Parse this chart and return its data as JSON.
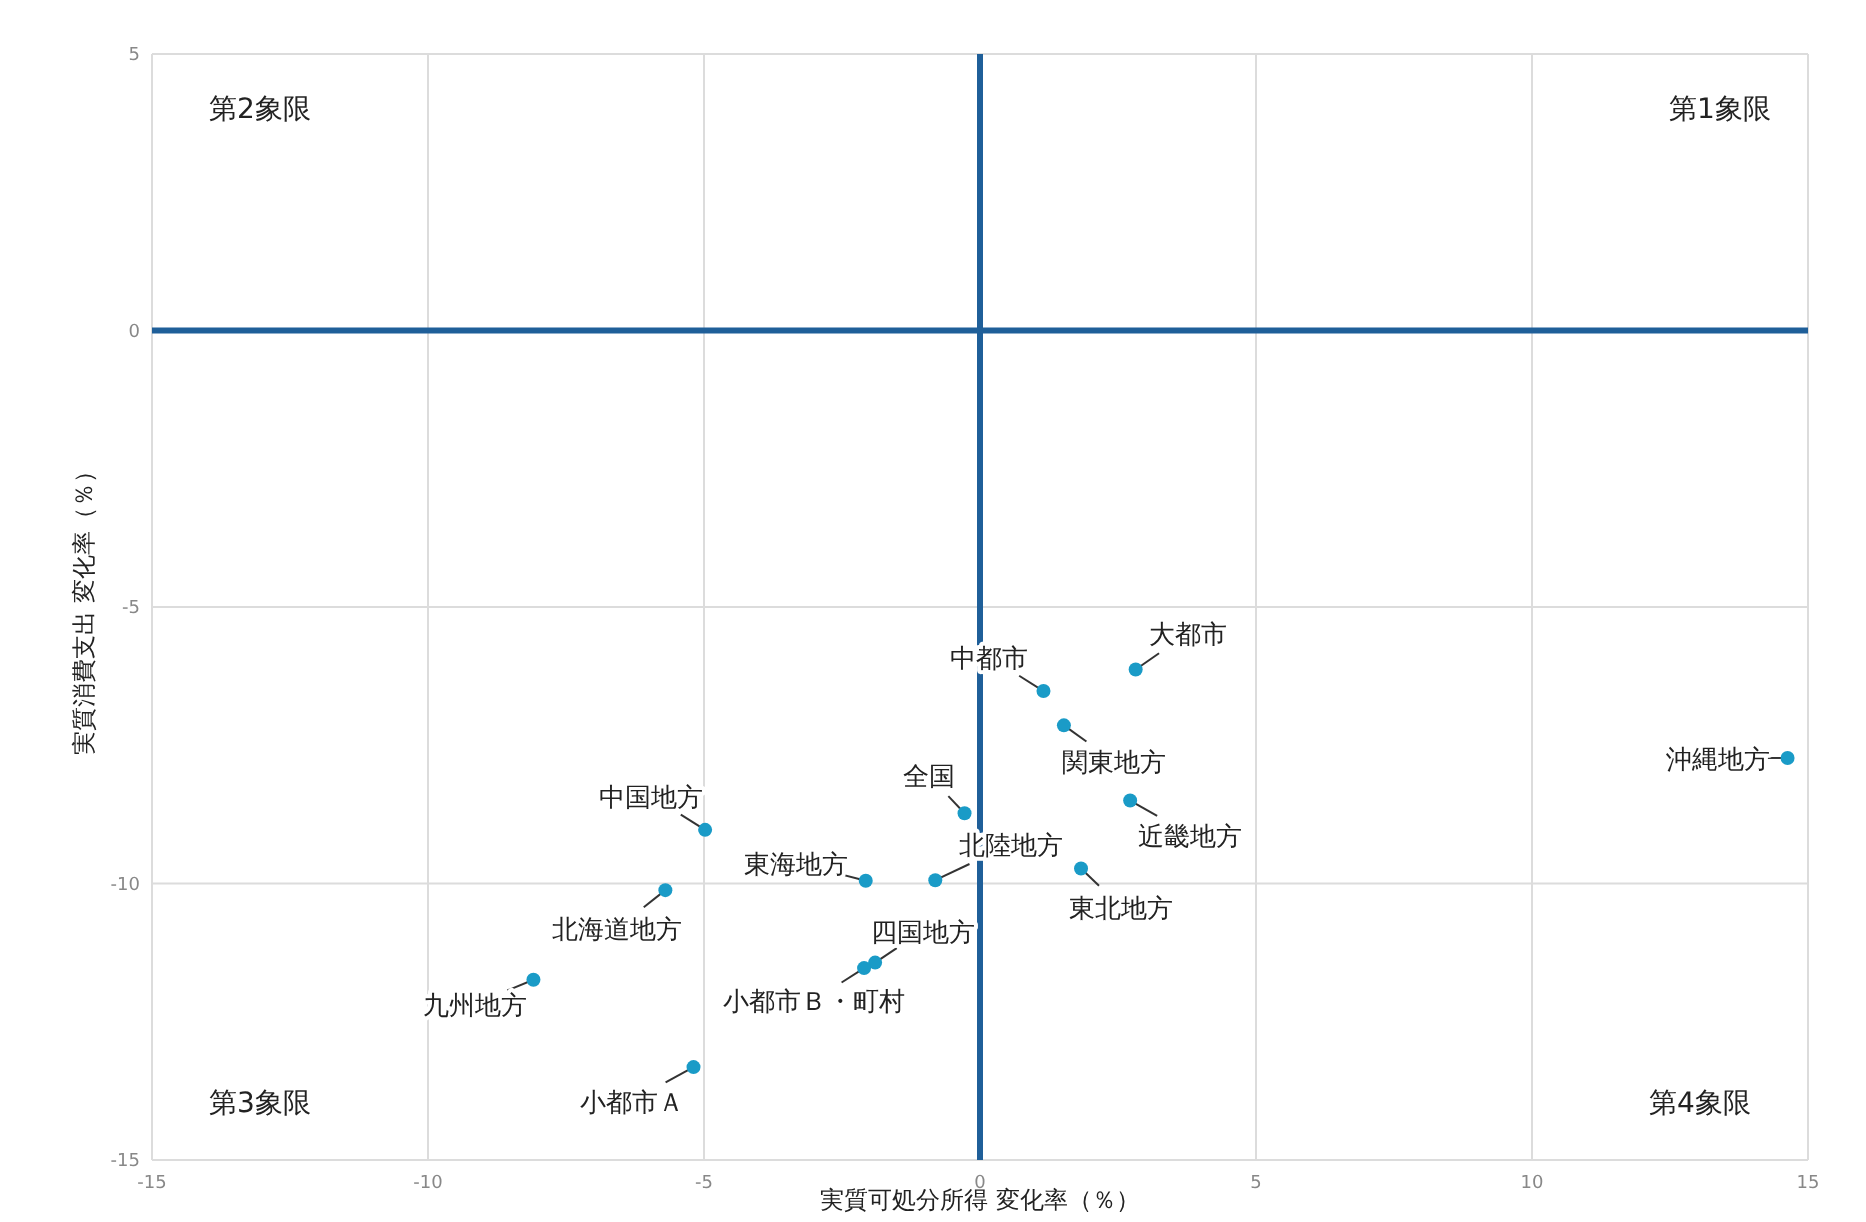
{
  "chart_data": {
    "type": "scatter",
    "xlabel": "実質可処分所得 変化率（％）",
    "ylabel": "実質消費支出 変化率（％）",
    "x": [
      2.82,
      1.15,
      1.52,
      -0.28,
      2.72,
      -4.98,
      -2.07,
      -0.81,
      1.83,
      -5.7,
      -1.9,
      -2.1,
      -5.19,
      -8.09,
      14.63
    ],
    "series": [
      {
        "color": "#1a9bc7",
        "values": [
          -6.13,
          -6.52,
          -7.14,
          -8.73,
          -8.5,
          -9.03,
          -9.95,
          -9.94,
          -9.73,
          -10.12,
          -11.43,
          -11.53,
          -13.32,
          -11.74,
          -7.73
        ]
      }
    ],
    "xlim": [
      -15,
      15
    ],
    "ylim": [
      -15,
      5
    ],
    "xticks": [
      -15,
      -10,
      -5,
      0,
      5,
      10,
      15
    ],
    "yticks": [
      5,
      0,
      -5,
      -10,
      -15
    ],
    "grid": true,
    "marker": "circle",
    "annotations": [
      "第2象限",
      "第1象限",
      "第3象限",
      "第4象限",
      {
        "text": "大都市",
        "x": 2.82,
        "y": -6.13
      },
      {
        "text": "中都市",
        "x": 1.15,
        "y": -6.52
      },
      {
        "text": "関東地方",
        "x": 1.52,
        "y": -7.14
      },
      {
        "text": "全国",
        "x": -0.28,
        "y": -8.73
      },
      {
        "text": "近畿地方",
        "x": 2.72,
        "y": -8.5
      },
      {
        "text": "中国地方",
        "x": -4.98,
        "y": -9.03
      },
      {
        "text": "東海地方",
        "x": -2.07,
        "y": -9.95
      },
      {
        "text": "北陸地方",
        "x": -0.81,
        "y": -9.94
      },
      {
        "text": "東北地方",
        "x": 1.83,
        "y": -9.73
      },
      {
        "text": "北海道地方",
        "x": -5.7,
        "y": -10.12
      },
      {
        "text": "四国地方",
        "x": -1.9,
        "y": -11.43
      },
      {
        "text": "小都市Ｂ・町村",
        "x": -2.1,
        "y": -11.53
      },
      {
        "text": "小都市Ａ",
        "x": -5.19,
        "y": -13.32
      },
      {
        "text": "九州地方",
        "x": -8.09,
        "y": -11.74
      },
      {
        "text": "沖縄地方",
        "x": 14.63,
        "y": -7.73
      }
    ]
  }
}
